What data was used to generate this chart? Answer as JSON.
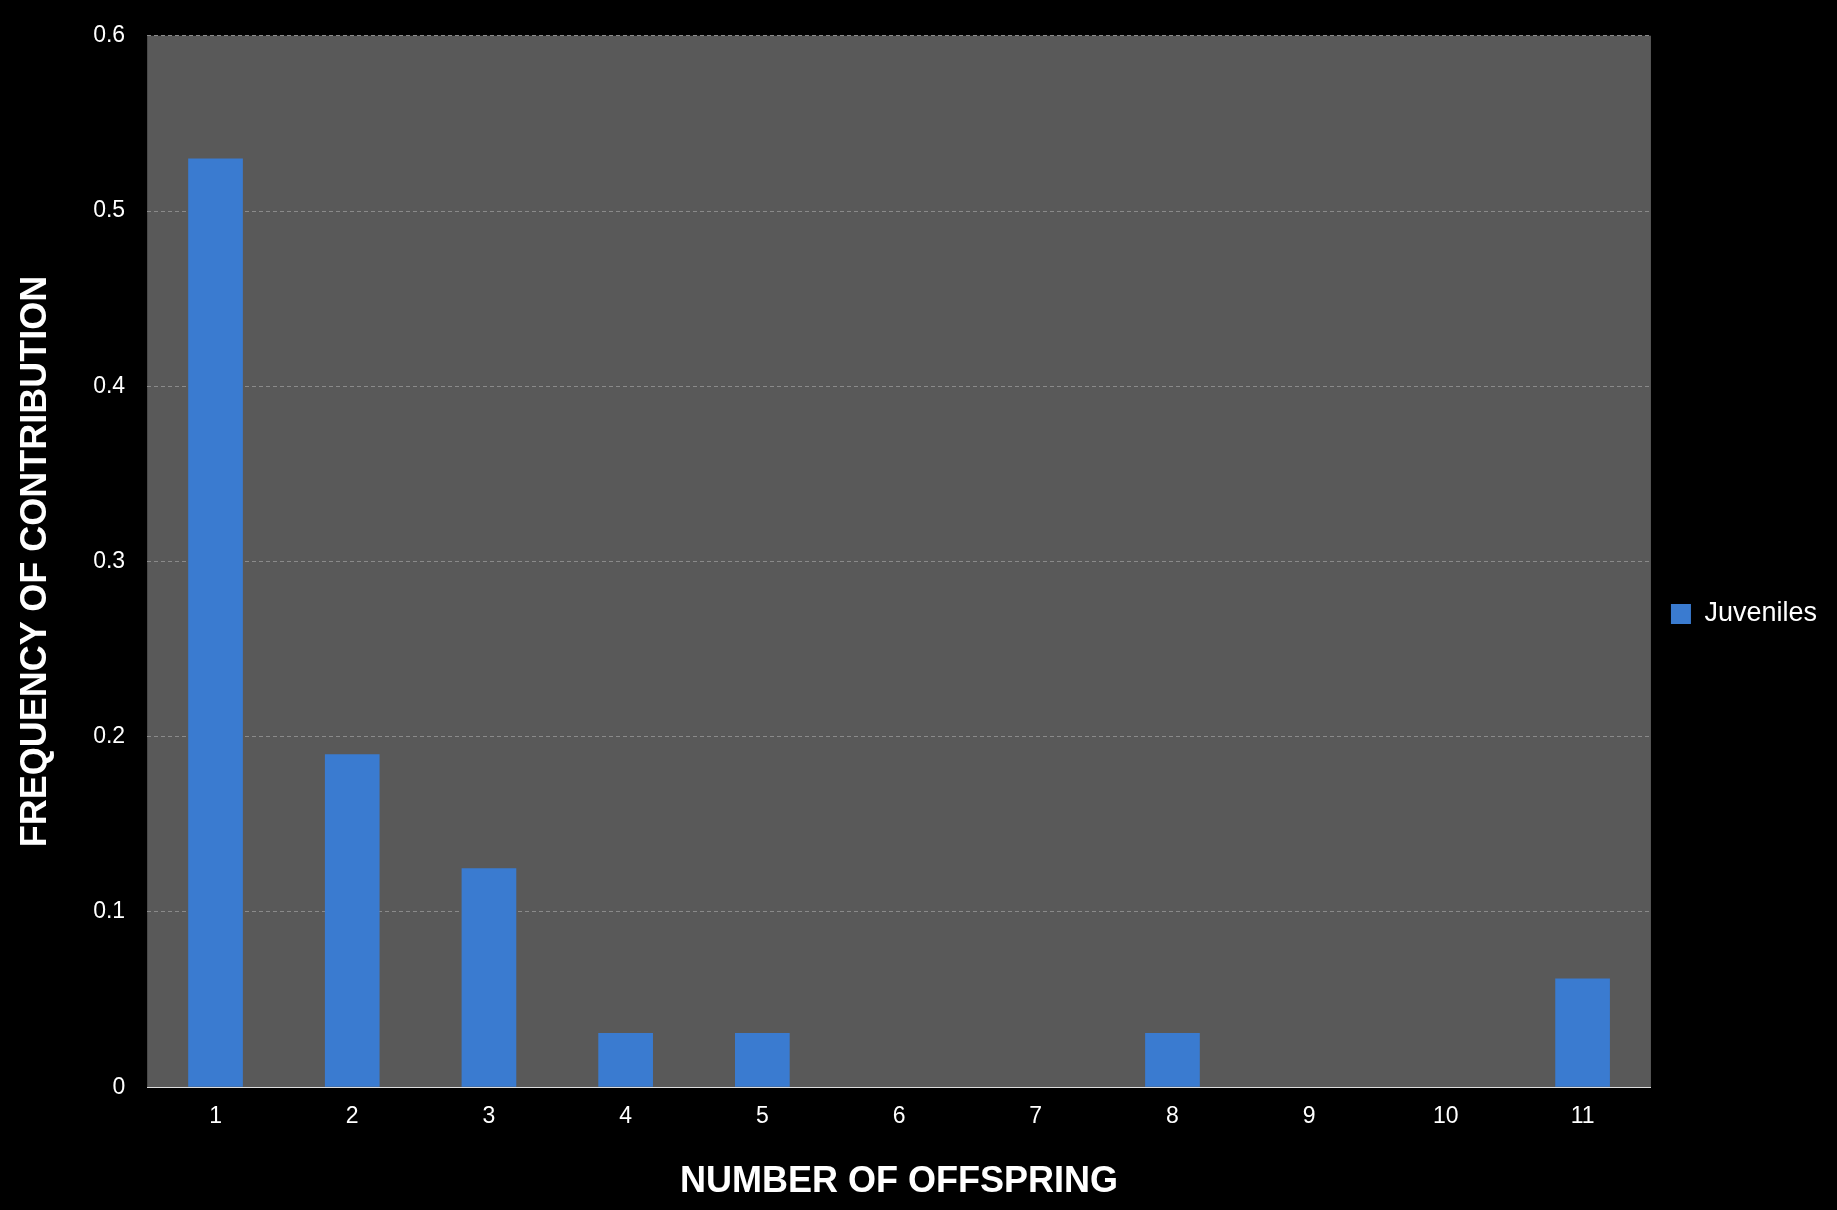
{
  "chart_data": {
    "type": "bar",
    "xlabel": "NUMBER OF OFFSPRING",
    "ylabel": "FREQUENCY OF CONTRIBUTION",
    "categories": [
      "1",
      "2",
      "3",
      "4",
      "5",
      "6",
      "7",
      "8",
      "9",
      "10",
      "11"
    ],
    "series": [
      {
        "name": "Juveniles",
        "color": "#3a7bd0",
        "values": [
          0.53,
          0.19,
          0.125,
          0.031,
          0.031,
          0,
          0,
          0.031,
          0,
          0,
          0.062
        ]
      }
    ],
    "ylim": [
      0,
      0.6
    ],
    "yticks": [
      0,
      0.1,
      0.2,
      0.3,
      0.4,
      0.5,
      0.6
    ],
    "grid": "y",
    "legend": "right"
  }
}
